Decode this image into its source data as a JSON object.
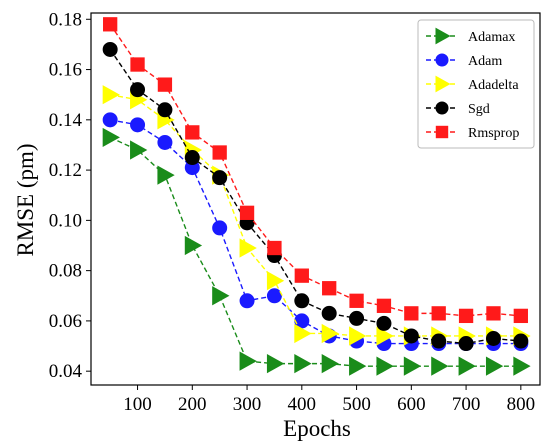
{
  "chart_data": {
    "type": "line",
    "xlabel": "Epochs",
    "ylabel": "RMSE (pm)",
    "xlim": [
      15,
      835
    ],
    "ylim": [
      0.0345,
      0.1825
    ],
    "xticks": [
      100,
      200,
      300,
      400,
      500,
      600,
      700,
      800
    ],
    "yticks": [
      0.04,
      0.06,
      0.08,
      0.1,
      0.12,
      0.14,
      0.16,
      0.18
    ],
    "ytick_labels": [
      "0.04",
      "0.06",
      "0.08",
      "0.10",
      "0.12",
      "0.14",
      "0.16",
      "0.18"
    ],
    "grid": false,
    "legend_position": "top-right",
    "x": [
      50,
      100,
      150,
      200,
      250,
      300,
      350,
      400,
      450,
      500,
      550,
      600,
      650,
      700,
      750,
      800
    ],
    "series": [
      {
        "name": "Adamax",
        "color": "#1a8c1a",
        "marker": "triangle-right",
        "values": [
          0.133,
          0.128,
          0.118,
          0.09,
          0.07,
          0.044,
          0.043,
          0.043,
          0.043,
          0.042,
          0.042,
          0.042,
          0.042,
          0.042,
          0.042,
          0.042
        ]
      },
      {
        "name": "Adam",
        "color": "#1a1aff",
        "marker": "circle",
        "values": [
          0.14,
          0.138,
          0.131,
          0.121,
          0.097,
          0.068,
          0.07,
          0.06,
          0.054,
          0.052,
          0.051,
          0.051,
          0.051,
          0.051,
          0.051,
          0.051
        ]
      },
      {
        "name": "Adadelta",
        "color": "#ffff00",
        "marker": "triangle-right",
        "values": [
          0.15,
          0.148,
          0.14,
          0.128,
          0.118,
          0.089,
          0.076,
          0.055,
          0.055,
          0.054,
          0.054,
          0.054,
          0.054,
          0.054,
          0.054,
          0.054
        ]
      },
      {
        "name": "Sgd",
        "color": "#000000",
        "marker": "circle",
        "values": [
          0.168,
          0.152,
          0.144,
          0.125,
          0.117,
          0.099,
          0.086,
          0.068,
          0.063,
          0.061,
          0.059,
          0.054,
          0.052,
          0.051,
          0.053,
          0.052
        ]
      },
      {
        "name": "Rmsprop",
        "color": "#ff1a1a",
        "marker": "square",
        "values": [
          0.178,
          0.162,
          0.154,
          0.135,
          0.127,
          0.103,
          0.089,
          0.078,
          0.073,
          0.068,
          0.066,
          0.063,
          0.063,
          0.062,
          0.063,
          0.062
        ]
      }
    ]
  }
}
